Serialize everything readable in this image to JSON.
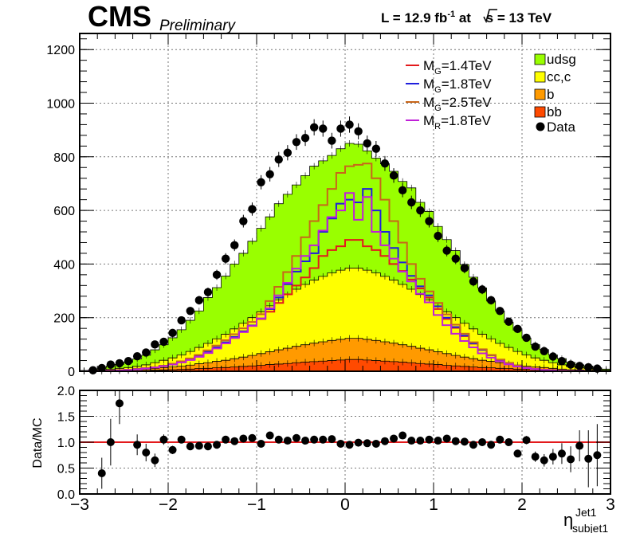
{
  "header": {
    "experiment": "CMS",
    "status": "Preliminary",
    "lumi_prefix": "L = 12.9 fb",
    "lumi_exp": "-1",
    "lumi_at": " at ",
    "sqrt_s_label": "s",
    "energy": " = 13 TeV"
  },
  "axes": {
    "x_title_main": "η",
    "x_title_sup": "Jet1",
    "x_title_sub": "subjet1",
    "ratio_ylabel": "Data/MC"
  },
  "legend": {
    "signals": [
      {
        "pre": "M",
        "sub": "G",
        "post": "=1.4TeV",
        "color": "#e31a1c"
      },
      {
        "pre": "M",
        "sub": "G",
        "post": "=1.8TeV",
        "color": "#1f1fdd"
      },
      {
        "pre": "M",
        "sub": "G",
        "post": "=2.5TeV",
        "color": "#c8661a"
      },
      {
        "pre": "M",
        "sub": "R",
        "post": "=1.8TeV",
        "color": "#c020d8"
      }
    ],
    "backgrounds": [
      {
        "label": "udsg",
        "color": "#99ff00"
      },
      {
        "label": "cc,c",
        "color": "#ffff00"
      },
      {
        "label": "b",
        "color": "#ff9a00"
      },
      {
        "label": "bb",
        "color": "#ff4a00"
      }
    ],
    "data_label": "Data"
  },
  "chart_data": [
    {
      "type": "bar",
      "stacked": true,
      "xlim": [
        -3,
        3
      ],
      "ylim": [
        0,
        1260
      ],
      "x_ticks": [
        -3,
        -2,
        -1,
        0,
        1,
        2,
        3
      ],
      "y_ticks": [
        0,
        200,
        400,
        600,
        800,
        1000,
        1200
      ],
      "grid": true,
      "bin_edges": [
        -3.0,
        -2.9,
        -2.8,
        -2.7,
        -2.6,
        -2.5,
        -2.4,
        -2.3,
        -2.2,
        -2.1,
        -2.0,
        -1.9,
        -1.8,
        -1.7,
        -1.6,
        -1.5,
        -1.4,
        -1.3,
        -1.2,
        -1.1,
        -1.0,
        -0.9,
        -0.8,
        -0.7,
        -0.6,
        -0.5,
        -0.4,
        -0.3,
        -0.2,
        -0.1,
        0.0,
        0.1,
        0.2,
        0.3,
        0.4,
        0.5,
        0.6,
        0.7,
        0.8,
        0.9,
        1.0,
        1.1,
        1.2,
        1.3,
        1.4,
        1.5,
        1.6,
        1.7,
        1.8,
        1.9,
        2.0,
        2.1,
        2.2,
        2.3,
        2.4,
        2.5,
        2.6,
        2.7,
        2.8,
        2.9,
        3.0
      ],
      "stack_series": [
        {
          "name": "bb",
          "color": "#ff4a00",
          "values": [
            0,
            0,
            0,
            1,
            1,
            2,
            2,
            3,
            4,
            5,
            6,
            7,
            8,
            10,
            11,
            13,
            14,
            16,
            18,
            20,
            22,
            25,
            27,
            29,
            32,
            34,
            36,
            38,
            40,
            42,
            44,
            44,
            42,
            40,
            38,
            36,
            34,
            32,
            29,
            27,
            25,
            22,
            20,
            18,
            16,
            14,
            13,
            11,
            10,
            8,
            7,
            6,
            5,
            4,
            3,
            2,
            2,
            1,
            1,
            0
          ]
        },
        {
          "name": "b",
          "color": "#ff9a00",
          "values": [
            0,
            0,
            1,
            2,
            3,
            3,
            4,
            5,
            7,
            9,
            10,
            12,
            15,
            18,
            21,
            24,
            27,
            31,
            35,
            39,
            44,
            48,
            53,
            57,
            61,
            65,
            69,
            72,
            75,
            77,
            79,
            79,
            77,
            75,
            72,
            69,
            65,
            61,
            57,
            53,
            48,
            44,
            39,
            35,
            31,
            27,
            24,
            21,
            18,
            15,
            12,
            10,
            9,
            7,
            5,
            4,
            3,
            3,
            2,
            1
          ]
        },
        {
          "name": "cc,c",
          "color": "#ffff00",
          "values": [
            1,
            2,
            3,
            5,
            7,
            9,
            12,
            16,
            21,
            27,
            34,
            42,
            51,
            61,
            72,
            84,
            97,
            111,
            126,
            141,
            156,
            171,
            186,
            200,
            213,
            225,
            235,
            244,
            252,
            258,
            262,
            262,
            258,
            252,
            244,
            235,
            225,
            213,
            200,
            186,
            171,
            156,
            141,
            126,
            111,
            97,
            84,
            72,
            61,
            51,
            42,
            34,
            27,
            21,
            16,
            12,
            9,
            7,
            5,
            3
          ]
        },
        {
          "name": "udsg",
          "color": "#99ff00",
          "values": [
            2,
            4,
            8,
            12,
            15,
            20,
            28,
            36,
            48,
            58,
            75,
            94,
            116,
            136,
            171,
            191,
            217,
            242,
            261,
            285,
            311,
            332,
            359,
            374,
            389,
            406,
            425,
            431,
            438,
            453,
            465,
            462,
            445,
            428,
            420,
            406,
            384,
            378,
            344,
            330,
            296,
            269,
            250,
            219,
            193,
            173,
            141,
            121,
            94,
            80,
            63,
            49,
            40,
            29,
            23,
            15,
            10,
            8,
            5,
            4
          ]
        }
      ],
      "signal_series": [
        {
          "name": "MG=1.4TeV",
          "color": "#e31a1c",
          "values": [
            0,
            1,
            2,
            3,
            4,
            6,
            8,
            11,
            15,
            20,
            27,
            35,
            45,
            57,
            72,
            89,
            108,
            128,
            149,
            171,
            195,
            222,
            255,
            287,
            320,
            350,
            385,
            430,
            452,
            466,
            490,
            490,
            466,
            452,
            430,
            400,
            374,
            342,
            309,
            275,
            232,
            195,
            162,
            131,
            103,
            80,
            60,
            43,
            31,
            21,
            14,
            9,
            6,
            4,
            3,
            2,
            1,
            1,
            0,
            0
          ]
        },
        {
          "name": "MG=1.8TeV",
          "color": "#1f1fdd",
          "values": [
            0,
            1,
            2,
            3,
            4,
            6,
            8,
            11,
            15,
            20,
            27,
            35,
            45,
            57,
            72,
            89,
            108,
            128,
            149,
            171,
            197,
            232,
            275,
            325,
            372,
            410,
            440,
            520,
            570,
            625,
            640,
            630,
            680,
            600,
            520,
            460,
            406,
            356,
            317,
            283,
            242,
            200,
            165,
            133,
            104,
            80,
            60,
            43,
            31,
            21,
            14,
            9,
            6,
            4,
            3,
            2,
            1,
            1,
            0,
            0
          ]
        },
        {
          "name": "MG=2.5TeV",
          "color": "#c8661a",
          "values": [
            0,
            1,
            2,
            3,
            4,
            6,
            8,
            11,
            15,
            20,
            28,
            37,
            48,
            61,
            78,
            96,
            116,
            138,
            160,
            184,
            213,
            262,
            315,
            370,
            430,
            500,
            560,
            620,
            680,
            740,
            765,
            770,
            775,
            720,
            640,
            560,
            480,
            400,
            345,
            298,
            255,
            212,
            174,
            140,
            108,
            82,
            61,
            44,
            31,
            21,
            14,
            9,
            6,
            4,
            3,
            2,
            1,
            1,
            0,
            0
          ]
        },
        {
          "name": "MR=1.8TeV",
          "color": "#c020d8",
          "values": [
            0,
            1,
            1,
            2,
            3,
            5,
            7,
            10,
            14,
            19,
            25,
            33,
            42,
            54,
            68,
            85,
            104,
            124,
            146,
            169,
            197,
            235,
            283,
            330,
            383,
            430,
            470,
            525,
            575,
            600,
            665,
            565,
            650,
            520,
            470,
            420,
            372,
            335,
            289,
            257,
            210,
            172,
            140,
            113,
            89,
            67,
            51,
            37,
            26,
            18,
            12,
            8,
            5,
            3,
            2,
            1,
            1,
            0,
            0,
            0
          ]
        }
      ],
      "data_series": {
        "name": "Data",
        "x": [
          -2.85,
          -2.75,
          -2.65,
          -2.55,
          -2.45,
          -2.35,
          -2.25,
          -2.15,
          -2.05,
          -1.95,
          -1.85,
          -1.75,
          -1.65,
          -1.55,
          -1.45,
          -1.35,
          -1.25,
          -1.15,
          -1.05,
          -0.95,
          -0.85,
          -0.75,
          -0.65,
          -0.55,
          -0.45,
          -0.35,
          -0.25,
          -0.15,
          -0.05,
          0.05,
          0.15,
          0.25,
          0.35,
          0.45,
          0.55,
          0.65,
          0.75,
          0.85,
          0.95,
          1.05,
          1.15,
          1.25,
          1.35,
          1.45,
          1.55,
          1.65,
          1.75,
          1.85,
          1.95,
          2.05,
          2.15,
          2.25,
          2.35,
          2.45,
          2.55,
          2.65,
          2.75,
          2.85
        ],
        "y": [
          4,
          12,
          25,
          30,
          38,
          56,
          70,
          100,
          110,
          143,
          190,
          225,
          265,
          295,
          360,
          420,
          470,
          560,
          605,
          705,
          735,
          790,
          815,
          855,
          870,
          910,
          905,
          860,
          905,
          920,
          895,
          850,
          830,
          775,
          730,
          675,
          630,
          600,
          560,
          505,
          450,
          420,
          385,
          335,
          305,
          265,
          225,
          185,
          158,
          125,
          92,
          75,
          55,
          38,
          25,
          20,
          15,
          10
        ]
      }
    },
    {
      "type": "scatter",
      "name": "ratio",
      "xlim": [
        -3,
        3
      ],
      "ylim": [
        0,
        2
      ],
      "x_ticks": [
        -3,
        -2,
        -1,
        0,
        1,
        2,
        3
      ],
      "y_ticks": [
        0,
        0.5,
        1,
        1.5,
        2
      ],
      "grid": true,
      "reference_line": 1.0,
      "reference_color": "#e31a1c",
      "x": [
        -2.75,
        -2.65,
        -2.55,
        -2.35,
        -2.25,
        -2.15,
        -2.05,
        -1.95,
        -1.85,
        -1.75,
        -1.65,
        -1.55,
        -1.45,
        -1.35,
        -1.25,
        -1.15,
        -1.05,
        -0.95,
        -0.85,
        -0.75,
        -0.65,
        -0.55,
        -0.45,
        -0.35,
        -0.25,
        -0.15,
        -0.05,
        0.05,
        0.15,
        0.25,
        0.35,
        0.45,
        0.55,
        0.65,
        0.75,
        0.85,
        0.95,
        1.05,
        1.15,
        1.25,
        1.35,
        1.45,
        1.55,
        1.65,
        1.75,
        1.85,
        1.95,
        2.05,
        2.15,
        2.25,
        2.35,
        2.45,
        2.55,
        2.65,
        2.75,
        2.85
      ],
      "y": [
        0.4,
        1.0,
        1.75,
        0.95,
        0.8,
        0.65,
        1.05,
        0.85,
        1.05,
        0.92,
        0.93,
        0.92,
        0.95,
        1.05,
        1.02,
        1.07,
        1.08,
        0.97,
        1.13,
        1.05,
        1.03,
        1.08,
        1.03,
        1.05,
        1.05,
        1.06,
        0.97,
        0.95,
        0.99,
        0.98,
        0.97,
        1.02,
        1.07,
        1.13,
        1.03,
        1.03,
        1.05,
        1.03,
        1.07,
        1.02,
        1.01,
        0.95,
        1.0,
        0.95,
        1.05,
        1.0,
        0.78,
        1.04,
        0.72,
        0.65,
        0.72,
        0.78,
        0.67,
        0.93,
        0.68,
        0.75
      ],
      "err": [
        0.3,
        0.45,
        0.4,
        0.2,
        0.17,
        0.13,
        0.1,
        0.08,
        0.07,
        0.06,
        0.06,
        0.05,
        0.05,
        0.05,
        0.04,
        0.04,
        0.04,
        0.04,
        0.04,
        0.04,
        0.04,
        0.04,
        0.03,
        0.03,
        0.03,
        0.03,
        0.03,
        0.03,
        0.03,
        0.03,
        0.03,
        0.03,
        0.04,
        0.04,
        0.04,
        0.04,
        0.04,
        0.04,
        0.04,
        0.05,
        0.05,
        0.05,
        0.05,
        0.06,
        0.06,
        0.07,
        0.07,
        0.08,
        0.1,
        0.12,
        0.15,
        0.2,
        0.25,
        0.3,
        0.55,
        0.6
      ]
    }
  ]
}
